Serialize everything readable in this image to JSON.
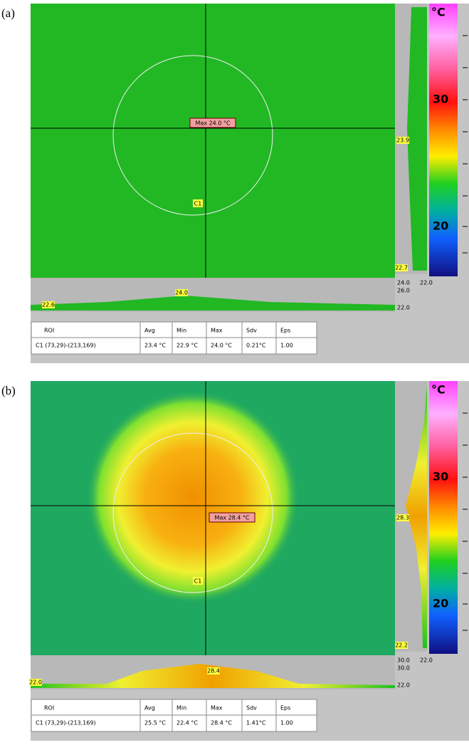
{
  "panels": [
    {
      "label": "(a)",
      "max_label": "Max 24.0 °C",
      "roi_label": "C1",
      "scale_unit": "°C",
      "scale_labels": [
        "30",
        "20"
      ],
      "right_profile_labels": [
        "23.9",
        "22.7"
      ],
      "scale_corner_labels": [
        "24.0",
        "22.0",
        "26.0",
        "22.0"
      ],
      "bottom_profile_labels": [
        "24.0",
        "22.6"
      ],
      "table": {
        "header": [
          "ROI",
          "Avg",
          "Min",
          "Max",
          "Sdv",
          "Eps"
        ],
        "row": [
          "C1 (73,29)-(213,169)",
          "23.4 °C",
          "22.9 °C",
          "24.0 °C",
          "0.21°C",
          "1.00"
        ]
      }
    },
    {
      "label": "(b)",
      "max_label": "Max 28.4 °C",
      "roi_label": "C1",
      "scale_unit": "°C",
      "scale_labels": [
        "30",
        "20"
      ],
      "right_profile_labels": [
        "28.3",
        "22.2"
      ],
      "scale_corner_labels": [
        "30.0",
        "22.0",
        "30.0",
        "22.0"
      ],
      "bottom_profile_labels": [
        "28.4",
        "22.0"
      ],
      "table": {
        "header": [
          "ROI",
          "Avg",
          "Min",
          "Max",
          "Sdv",
          "Eps"
        ],
        "row": [
          "C1 (73,29)-(213,169)",
          "25.5 °C",
          "22.4 °C",
          "28.4 °C",
          "1.41°C",
          "1.00"
        ]
      }
    }
  ]
}
